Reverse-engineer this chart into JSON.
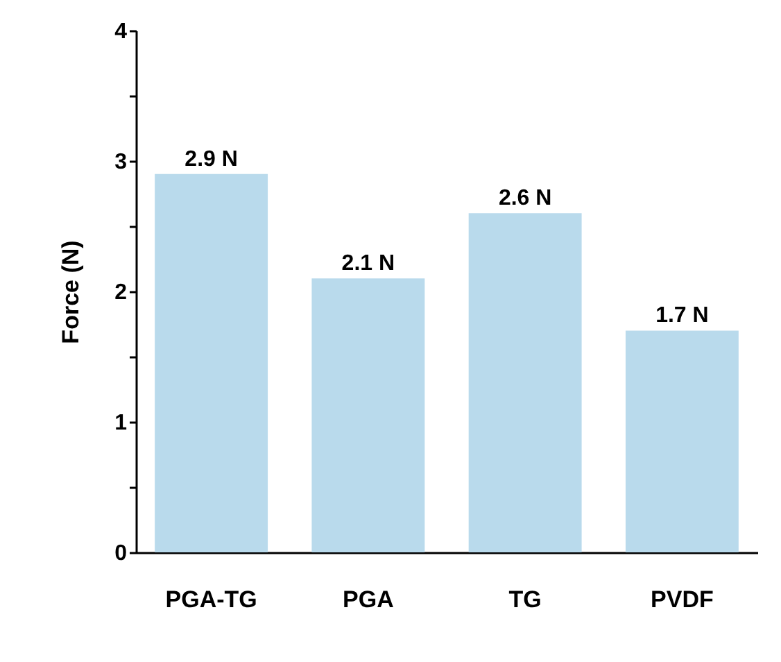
{
  "chart_data": {
    "type": "bar",
    "ylabel": "Force (N)",
    "categories": [
      "PGA-TG",
      "PGA",
      "TG",
      "PVDF"
    ],
    "values": [
      2.9,
      2.1,
      2.6,
      1.7
    ],
    "value_labels": [
      "2.9 N",
      "2.1 N",
      "2.6 N",
      "1.7 N"
    ],
    "color": "#b9daec",
    "ylim": [
      0,
      4
    ],
    "yticks": [
      0,
      {
        "value": 0.5,
        "label": null
      },
      1,
      {
        "value": 1.5,
        "label": null
      },
      2,
      {
        "value": 2.5,
        "label": null
      },
      3,
      {
        "value": 3.5,
        "label": null
      },
      4
    ]
  }
}
